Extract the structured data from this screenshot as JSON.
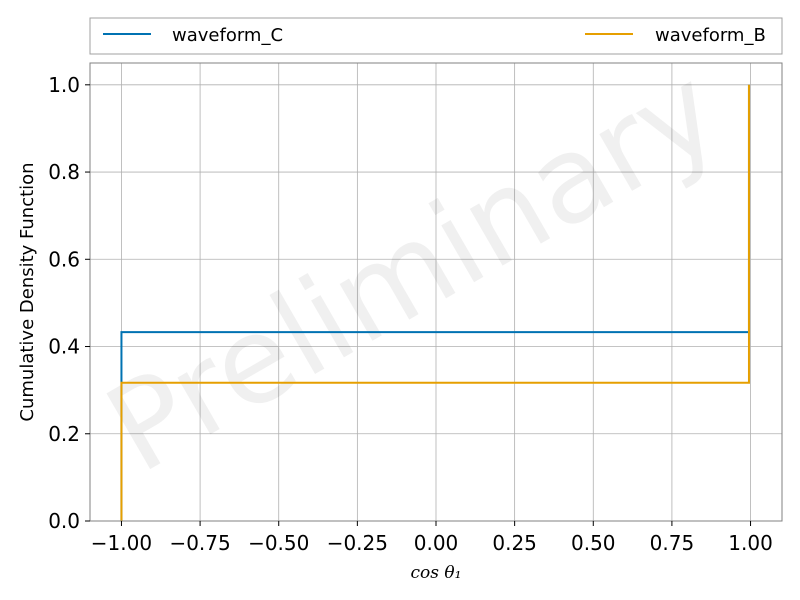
{
  "chart_data": {
    "type": "line",
    "step": true,
    "xlabel": "cos θ₁",
    "ylabel": "Cumulative Density Function",
    "xlim": [
      -1.1,
      1.1
    ],
    "ylim": [
      0,
      1.05
    ],
    "xticks": [
      -1.0,
      -0.75,
      -0.5,
      -0.25,
      0.0,
      0.25,
      0.5,
      0.75,
      1.0
    ],
    "xtick_labels": [
      "−1.00",
      "−0.75",
      "−0.50",
      "−0.25",
      "0.00",
      "0.25",
      "0.50",
      "0.75",
      "1.00"
    ],
    "yticks": [
      0.0,
      0.2,
      0.4,
      0.6,
      0.8,
      1.0
    ],
    "ytick_labels": [
      "0.0",
      "0.2",
      "0.4",
      "0.6",
      "0.8",
      "1.0"
    ],
    "grid": true,
    "legend_position": "top",
    "watermark": "Preliminary",
    "series": [
      {
        "name": "waveform_C",
        "color": "#0072b2",
        "x": [
          -1.0,
          -1.0,
          -1.0,
          0.995,
          0.995
        ],
        "y": [
          0.0,
          0.32,
          0.433,
          0.433,
          1.0
        ]
      },
      {
        "name": "waveform_B",
        "color": "#e69f00",
        "x": [
          -1.0,
          -1.0,
          0.995,
          0.995
        ],
        "y": [
          0.0,
          0.317,
          0.317,
          1.0
        ]
      }
    ]
  }
}
